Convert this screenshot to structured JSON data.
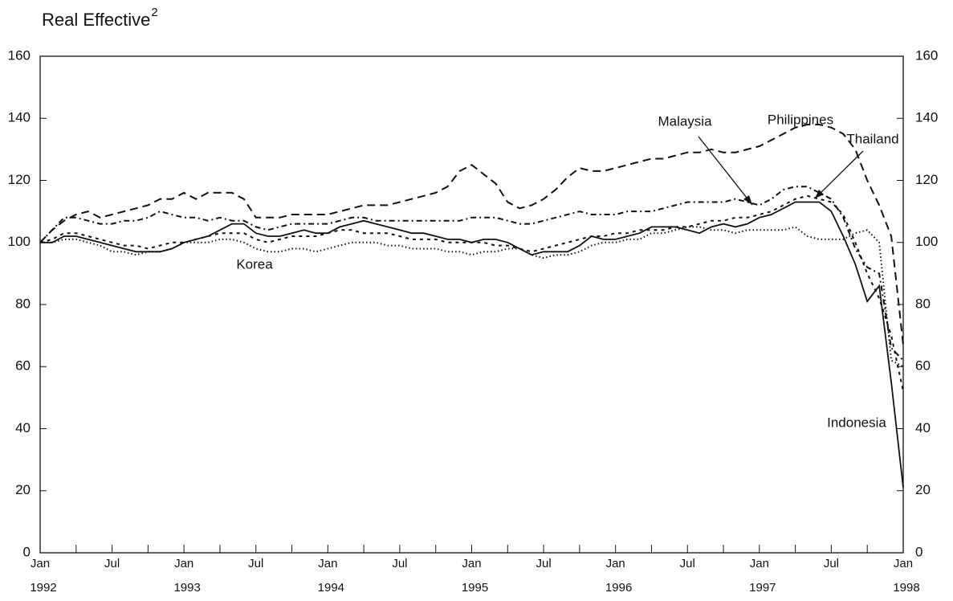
{
  "chart_data": {
    "type": "line",
    "title": "Real Effective",
    "title_superscript": "2",
    "categories": [
      "Jan",
      null,
      null,
      null,
      null,
      null,
      "Jul",
      null,
      null,
      null,
      null,
      null,
      "Jan",
      null,
      null,
      null,
      null,
      null,
      "Jul",
      null,
      null,
      null,
      null,
      null,
      "Jan",
      null,
      null,
      null,
      null,
      null,
      "Jul",
      null,
      null,
      null,
      null,
      null,
      "Jan",
      null,
      null,
      null,
      null,
      null,
      "Jul",
      null,
      null,
      null,
      null,
      null,
      "Jan",
      null,
      null,
      null,
      null,
      null,
      "Jul",
      null,
      null,
      null,
      null,
      null,
      "Jan",
      null,
      null,
      null,
      null,
      null,
      "Jul",
      null,
      null,
      null,
      null,
      null,
      "Jan"
    ],
    "category_years": [
      "1992",
      null,
      null,
      null,
      null,
      null,
      null,
      null,
      null,
      null,
      null,
      null,
      "1993",
      null,
      null,
      null,
      null,
      null,
      null,
      null,
      null,
      null,
      null,
      null,
      "1994",
      null,
      null,
      null,
      null,
      null,
      null,
      null,
      null,
      null,
      null,
      null,
      "1995",
      null,
      null,
      null,
      null,
      null,
      null,
      null,
      null,
      null,
      null,
      null,
      "1996",
      null,
      null,
      null,
      null,
      null,
      null,
      null,
      null,
      null,
      null,
      null,
      "1997",
      null,
      null,
      null,
      null,
      null,
      null,
      null,
      null,
      null,
      null,
      null,
      "1998"
    ],
    "series": [
      {
        "name": "Indonesia",
        "color": "#111111",
        "dash": "solid",
        "values": [
          100,
          100,
          102,
          102,
          101,
          100,
          99,
          98,
          97,
          97,
          97,
          98,
          100,
          101,
          102,
          104,
          106,
          106,
          103,
          102,
          102,
          103,
          104,
          103,
          103,
          105,
          106,
          107,
          106,
          105,
          104,
          103,
          103,
          102,
          101,
          101,
          100,
          101,
          101,
          100,
          98,
          96,
          97,
          97,
          97,
          99,
          102,
          101,
          101,
          102,
          103,
          105,
          105,
          105,
          104,
          103,
          105,
          106,
          105,
          106,
          108,
          109,
          111,
          113,
          113,
          113,
          110,
          102,
          93,
          81,
          86,
          55,
          21
        ]
      },
      {
        "name": "Korea",
        "color": "#111111",
        "dash": "dotted",
        "values": [
          100,
          100,
          101,
          101,
          100,
          99,
          97,
          97,
          96,
          97,
          97,
          98,
          100,
          100,
          100,
          101,
          101,
          100,
          98,
          97,
          97,
          98,
          98,
          97,
          98,
          99,
          100,
          100,
          100,
          99,
          99,
          98,
          98,
          98,
          97,
          97,
          96,
          97,
          97,
          98,
          98,
          96,
          95,
          96,
          96,
          97,
          99,
          100,
          100,
          101,
          101,
          103,
          103,
          104,
          105,
          105,
          104,
          104,
          103,
          104,
          104,
          104,
          104,
          105,
          102,
          101,
          101,
          101,
          103,
          104,
          100,
          62,
          60
        ]
      },
      {
        "name": "Malaysia",
        "color": "#111111",
        "dash": "dashdot",
        "values": [
          100,
          104,
          108,
          108,
          107,
          106,
          106,
          107,
          107,
          108,
          110,
          109,
          108,
          108,
          107,
          108,
          107,
          107,
          105,
          104,
          105,
          106,
          106,
          106,
          106,
          107,
          108,
          108,
          107,
          107,
          107,
          107,
          107,
          107,
          107,
          107,
          108,
          108,
          108,
          107,
          106,
          106,
          107,
          108,
          109,
          110,
          109,
          109,
          109,
          110,
          110,
          110,
          111,
          112,
          113,
          113,
          113,
          113,
          114,
          113,
          112,
          114,
          117,
          118,
          118,
          116,
          114,
          108,
          98,
          92,
          90,
          66,
          62
        ]
      },
      {
        "name": "Philippines",
        "color": "#111111",
        "dash": "dashed",
        "values": [
          100,
          104,
          107,
          109,
          110,
          108,
          109,
          110,
          111,
          112,
          114,
          114,
          116,
          114,
          116,
          116,
          116,
          114,
          108,
          108,
          108,
          109,
          109,
          109,
          109,
          110,
          111,
          112,
          112,
          112,
          113,
          114,
          115,
          116,
          118,
          123,
          125,
          122,
          119,
          113,
          111,
          112,
          114,
          117,
          121,
          124,
          123,
          123,
          124,
          125,
          126,
          127,
          127,
          128,
          129,
          129,
          130,
          129,
          129,
          130,
          131,
          133,
          135,
          137,
          138,
          138,
          137,
          135,
          130,
          120,
          112,
          102,
          67
        ]
      },
      {
        "name": "Thailand",
        "color": "#111111",
        "dash": "shortdash",
        "values": [
          100,
          101,
          103,
          103,
          102,
          101,
          100,
          99,
          99,
          98,
          99,
          100,
          100,
          101,
          102,
          103,
          103,
          103,
          101,
          100,
          101,
          102,
          102,
          102,
          103,
          104,
          104,
          103,
          103,
          103,
          102,
          101,
          101,
          101,
          100,
          100,
          100,
          100,
          99,
          99,
          98,
          97,
          98,
          99,
          100,
          101,
          102,
          102,
          103,
          103,
          104,
          104,
          104,
          105,
          105,
          106,
          107,
          107,
          108,
          108,
          109,
          110,
          112,
          114,
          115,
          114,
          113,
          109,
          100,
          90,
          82,
          70,
          52
        ]
      }
    ],
    "ylim": [
      0,
      160
    ],
    "yticks": [
      0,
      20,
      40,
      60,
      80,
      100,
      120,
      140,
      160
    ],
    "y2lim": [
      0,
      160
    ],
    "y2ticks": [
      0,
      20,
      40,
      60,
      80,
      100,
      120,
      140,
      160
    ],
    "grid": false
  }
}
